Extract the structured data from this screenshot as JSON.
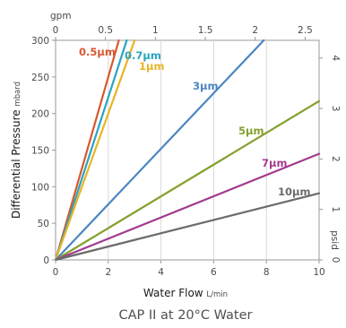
{
  "chart_data": {
    "type": "line",
    "caption": "CAP II at 20°C Water",
    "x_axis": {
      "label": "Water Flow",
      "unit": "L/min",
      "range": [
        0,
        10
      ],
      "ticks": [
        0,
        2,
        4,
        6,
        8,
        10
      ]
    },
    "x2_axis": {
      "label": "gpm",
      "range": [
        0,
        2.64
      ],
      "ticks": [
        "0",
        "0.5",
        "1",
        "1.5",
        "2",
        "2.5"
      ]
    },
    "y_axis": {
      "label": "Differential Pressure",
      "unit": "mbard",
      "range": [
        0,
        300
      ],
      "ticks": [
        0,
        50,
        100,
        150,
        200,
        250,
        300
      ]
    },
    "y2_axis": {
      "label": "psid",
      "range": [
        0,
        4.35
      ],
      "ticks": [
        "0",
        "1",
        "2",
        "3",
        "4"
      ]
    },
    "grid": "vertical major lines at each x tick",
    "series": [
      {
        "name": "0.5µm",
        "color": "#d9572f",
        "x": [
          0,
          2.4
        ],
        "y": [
          0,
          300
        ]
      },
      {
        "name": "0.7µm",
        "color": "#2aa4c0",
        "x": [
          0,
          2.7
        ],
        "y": [
          0,
          300
        ]
      },
      {
        "name": "1µm",
        "color": "#e9b424",
        "x": [
          0,
          3.0
        ],
        "y": [
          0,
          300
        ]
      },
      {
        "name": "3µm",
        "color": "#4a86c1",
        "x": [
          0,
          7.9
        ],
        "y": [
          0,
          300
        ]
      },
      {
        "name": "5µm",
        "color": "#83a02c",
        "x": [
          0,
          10
        ],
        "y": [
          0,
          217
        ]
      },
      {
        "name": "7µm",
        "color": "#a33a8e",
        "x": [
          0,
          10
        ],
        "y": [
          0,
          145
        ]
      },
      {
        "name": "10µm",
        "color": "#6b6b6b",
        "x": [
          0,
          10
        ],
        "y": [
          0,
          91
        ]
      }
    ]
  }
}
